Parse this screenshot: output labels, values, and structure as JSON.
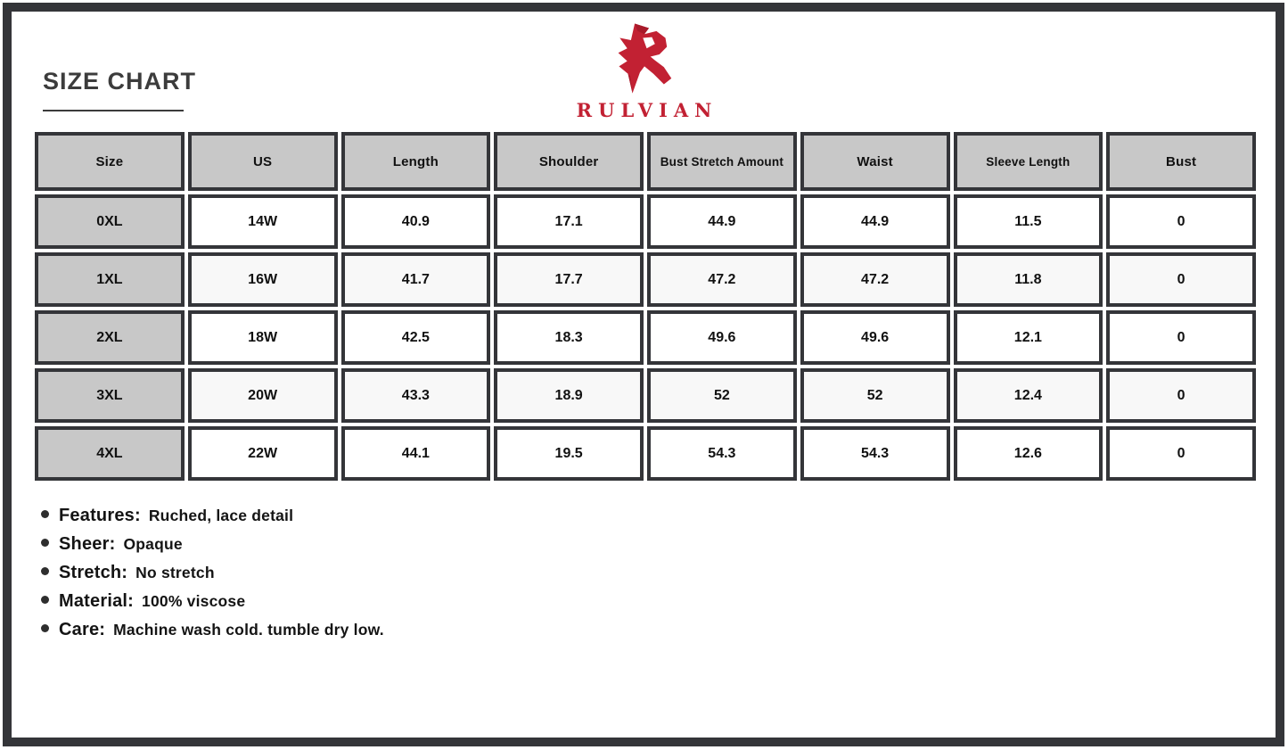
{
  "page": {
    "title": "SIZE CHART"
  },
  "brand": {
    "name": "RULVIAN",
    "logo_icon": "angular-r-mark",
    "logo_color": "#c22133"
  },
  "table": {
    "columns": [
      "Size",
      "US",
      "Length",
      "Shoulder",
      "Bust Stretch Amount",
      "Waist",
      "Sleeve Length",
      "Bust"
    ],
    "rows": [
      [
        "0XL",
        "14W",
        "40.9",
        "17.1",
        "44.9",
        "44.9",
        "11.5",
        "0"
      ],
      [
        "1XL",
        "16W",
        "41.7",
        "17.7",
        "47.2",
        "47.2",
        "11.8",
        "0"
      ],
      [
        "2XL",
        "18W",
        "42.5",
        "18.3",
        "49.6",
        "49.6",
        "12.1",
        "0"
      ],
      [
        "3XL",
        "20W",
        "43.3",
        "18.9",
        "52",
        "52",
        "12.4",
        "0"
      ],
      [
        "4XL",
        "22W",
        "44.1",
        "19.5",
        "54.3",
        "54.3",
        "12.6",
        "0"
      ]
    ]
  },
  "details": [
    {
      "label": "Features:",
      "value": "Ruched, lace detail"
    },
    {
      "label": "Sheer:",
      "value": "Opaque"
    },
    {
      "label": "Stretch:",
      "value": "No stretch"
    },
    {
      "label": "Material:",
      "value": "100% viscose"
    },
    {
      "label": "Care:",
      "value": "Machine wash cold. tumble dry low."
    }
  ],
  "colors": {
    "accent_red": "#c22133",
    "frame_and_borders": "#343539",
    "header_gray": "#c8c8c8",
    "alt_row": "#f8f8f8",
    "text_dark": "#141414"
  }
}
